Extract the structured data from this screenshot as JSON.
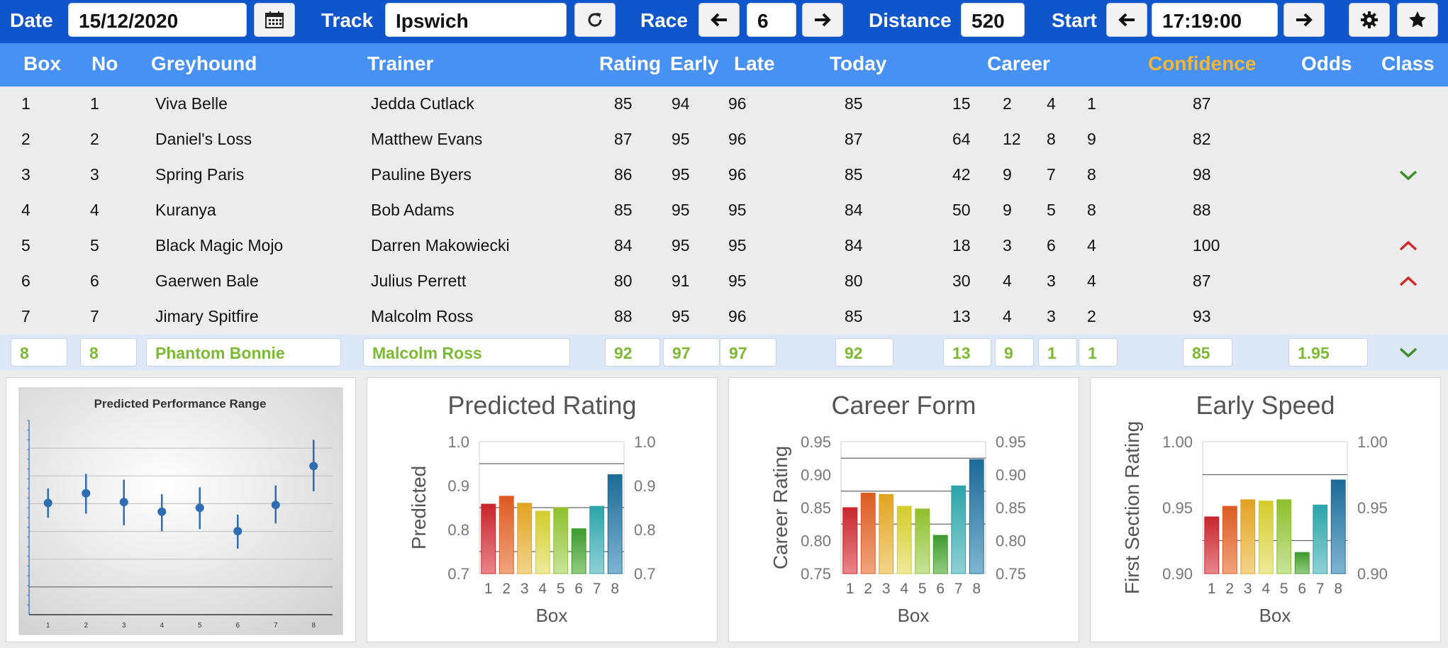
{
  "topbar": {
    "date_label": "Date",
    "date_value": "15/12/2020",
    "calendar_icon": "calendar-icon",
    "track_label": "Track",
    "track_value": "Ipswich",
    "refresh_icon": "refresh-icon",
    "race_label": "Race",
    "race_value": "6",
    "distance_label": "Distance",
    "distance_value": "520",
    "start_label": "Start",
    "start_value": "17:19:00",
    "prev_icon": "arrow-left-icon",
    "next_icon": "arrow-right-icon",
    "settings_icon": "gear-icon",
    "favorite_icon": "star-icon"
  },
  "header": {
    "box": "Box",
    "no": "No",
    "greyhound": "Greyhound",
    "trainer": "Trainer",
    "rating": "Rating",
    "early": "Early",
    "late": "Late",
    "today": "Today",
    "career": "Career",
    "confidence": "Confidence",
    "odds": "Odds",
    "class": "Class",
    "confidence_color": "#f5b731"
  },
  "rows": [
    {
      "box": "1",
      "no": "1",
      "greyhound": "Viva Belle",
      "trainer": "Jedda Cutlack",
      "rating": "85",
      "early": "94",
      "late": "96",
      "today": "85",
      "c1": "15",
      "c2": "2",
      "c3": "4",
      "c4": "1",
      "confidence": "87",
      "odds": "",
      "class_icon": ""
    },
    {
      "box": "2",
      "no": "2",
      "greyhound": "Daniel's Loss",
      "trainer": "Matthew Evans",
      "rating": "87",
      "early": "95",
      "late": "96",
      "today": "87",
      "c1": "64",
      "c2": "12",
      "c3": "8",
      "c4": "9",
      "confidence": "82",
      "odds": "",
      "class_icon": ""
    },
    {
      "box": "3",
      "no": "3",
      "greyhound": "Spring Paris",
      "trainer": "Pauline Byers",
      "rating": "86",
      "early": "95",
      "late": "96",
      "today": "85",
      "c1": "42",
      "c2": "9",
      "c3": "7",
      "c4": "8",
      "confidence": "98",
      "odds": "",
      "class_icon": "down"
    },
    {
      "box": "4",
      "no": "4",
      "greyhound": "Kuranya",
      "trainer": "Bob Adams",
      "rating": "85",
      "early": "95",
      "late": "95",
      "today": "84",
      "c1": "50",
      "c2": "9",
      "c3": "5",
      "c4": "8",
      "confidence": "88",
      "odds": "",
      "class_icon": ""
    },
    {
      "box": "5",
      "no": "5",
      "greyhound": "Black Magic Mojo",
      "trainer": "Darren Makowiecki",
      "rating": "84",
      "early": "95",
      "late": "95",
      "today": "84",
      "c1": "18",
      "c2": "3",
      "c3": "6",
      "c4": "4",
      "confidence": "100",
      "odds": "",
      "class_icon": "up"
    },
    {
      "box": "6",
      "no": "6",
      "greyhound": "Gaerwen Bale",
      "trainer": "Julius Perrett",
      "rating": "80",
      "early": "91",
      "late": "95",
      "today": "80",
      "c1": "30",
      "c2": "4",
      "c3": "3",
      "c4": "4",
      "confidence": "87",
      "odds": "",
      "class_icon": "up"
    },
    {
      "box": "7",
      "no": "7",
      "greyhound": "Jimary Spitfire",
      "trainer": "Malcolm Ross",
      "rating": "88",
      "early": "95",
      "late": "96",
      "today": "85",
      "c1": "13",
      "c2": "4",
      "c3": "3",
      "c4": "2",
      "confidence": "93",
      "odds": "",
      "class_icon": ""
    }
  ],
  "selected_row": {
    "box": "8",
    "no": "8",
    "greyhound": "Phantom Bonnie",
    "trainer": "Malcolm Ross",
    "rating": "92",
    "early": "97",
    "late": "97",
    "today": "92",
    "c1": "13",
    "c2": "9",
    "c3": "1",
    "c4": "1",
    "confidence": "85",
    "odds": "1.95",
    "class_icon": "down"
  },
  "colors": {
    "class_down": "#3a8f2a",
    "class_up": "#cf2b2b",
    "selected_text": "#7cb932"
  },
  "chart_data": [
    {
      "type": "scatter",
      "title": "Predicted Performance Range",
      "x": [
        1,
        2,
        3,
        4,
        5,
        6,
        7,
        8
      ],
      "y": [
        0.855,
        0.865,
        0.856,
        0.846,
        0.85,
        0.826,
        0.853,
        0.893
      ],
      "err_low": [
        0.84,
        0.844,
        0.832,
        0.826,
        0.828,
        0.808,
        0.834,
        0.867
      ],
      "err_high": [
        0.87,
        0.885,
        0.879,
        0.864,
        0.871,
        0.843,
        0.873,
        0.92
      ],
      "xticks": [
        "1",
        "2",
        "3",
        "4",
        "5",
        "6",
        "7",
        "8"
      ],
      "ylim": [
        0.74,
        0.94
      ],
      "grid": true
    },
    {
      "type": "bar",
      "title": "Predicted Rating",
      "categories": [
        "1",
        "2",
        "3",
        "4",
        "5",
        "6",
        "7",
        "8"
      ],
      "values": [
        0.858,
        0.876,
        0.86,
        0.842,
        0.85,
        0.802,
        0.853,
        0.925
      ],
      "xlabel": "Box",
      "ylabel": "Predicted",
      "ylim": [
        0.7,
        1.0
      ],
      "yticks": [
        "0.7",
        "0.8",
        "0.9",
        "1.0"
      ],
      "ytick_values": [
        0.7,
        0.8,
        0.9,
        1.0
      ],
      "hlines": [
        0.75,
        0.85,
        0.95
      ]
    },
    {
      "type": "bar",
      "title": "Career Form",
      "categories": [
        "1",
        "2",
        "3",
        "4",
        "5",
        "6",
        "7",
        "8"
      ],
      "values": [
        0.85,
        0.872,
        0.87,
        0.852,
        0.848,
        0.808,
        0.883,
        0.923
      ],
      "xlabel": "Box",
      "ylabel": "Career Rating",
      "ylim": [
        0.75,
        0.95
      ],
      "yticks": [
        "0.75",
        "0.80",
        "0.85",
        "0.90",
        "0.95"
      ],
      "ytick_values": [
        0.75,
        0.8,
        0.85,
        0.9,
        0.95
      ],
      "hlines": [
        0.825,
        0.875,
        0.925
      ]
    },
    {
      "type": "bar",
      "title": "Early Speed",
      "categories": [
        "1",
        "2",
        "3",
        "4",
        "5",
        "6",
        "7",
        "8"
      ],
      "values": [
        0.943,
        0.951,
        0.956,
        0.955,
        0.956,
        0.916,
        0.952,
        0.971
      ],
      "xlabel": "Box",
      "ylabel": "First Section Rating",
      "ylim": [
        0.9,
        1.0
      ],
      "yticks": [
        "0.90",
        "0.95",
        "1.00"
      ],
      "ytick_values": [
        0.9,
        0.95,
        1.0
      ],
      "hlines": [
        0.925,
        0.975
      ]
    }
  ]
}
